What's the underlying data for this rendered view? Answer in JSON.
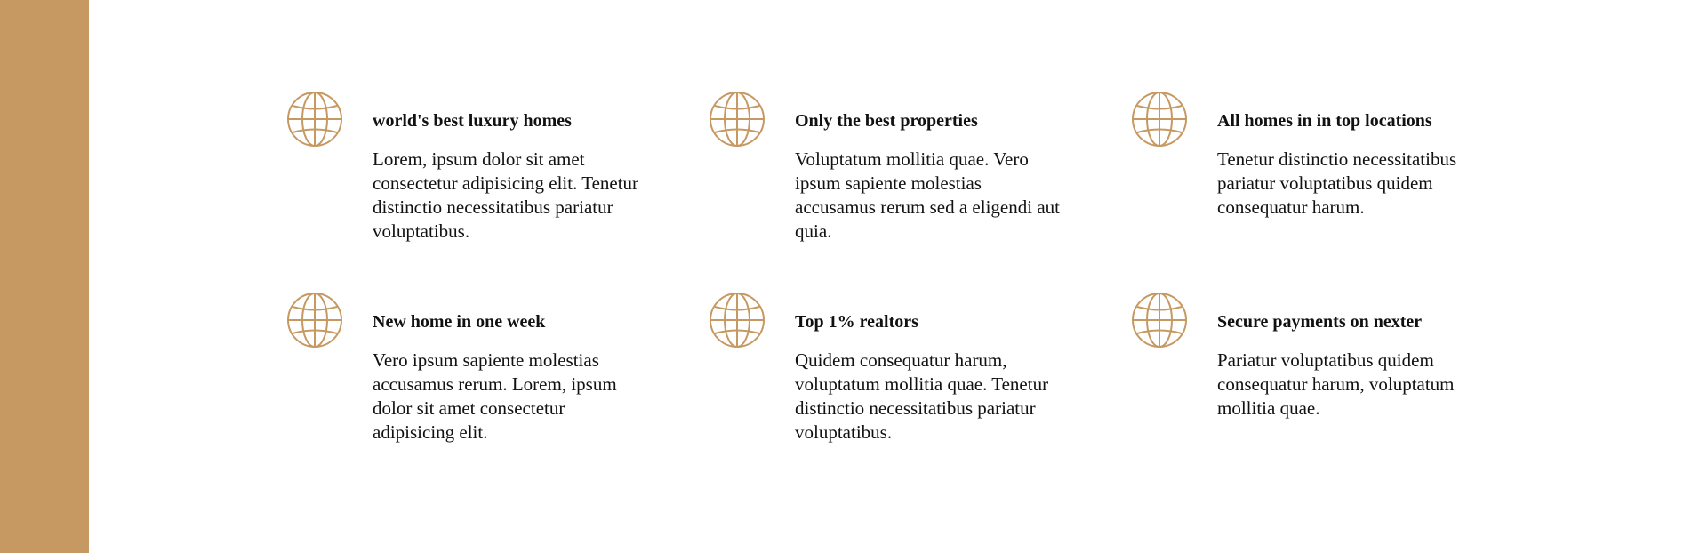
{
  "theme": {
    "accent": "#c69963",
    "text": "#111111",
    "background": "#ffffff"
  },
  "features": [
    {
      "icon": "globe-icon",
      "title": "world's best luxury homes",
      "text": "Lorem, ipsum dolor sit amet consectetur adipisicing elit. Tenetur distinctio necessitatibus pariatur voluptatibus."
    },
    {
      "icon": "globe-icon",
      "title": "Only the best properties",
      "text": "Voluptatum mollitia quae. Vero ipsum sapiente molestias accusamus rerum sed a eligendi aut quia."
    },
    {
      "icon": "globe-icon",
      "title": "All homes in in top locations",
      "text": "Tenetur distinctio necessitatibus pariatur voluptatibus quidem consequatur harum."
    },
    {
      "icon": "globe-icon",
      "title": "New home in one week",
      "text": "Vero ipsum sapiente molestias accusamus rerum. Lorem, ipsum dolor sit amet consectetur adipisicing elit."
    },
    {
      "icon": "globe-icon",
      "title": "Top 1% realtors",
      "text": "Quidem consequatur harum, voluptatum mollitia quae. Tenetur distinctio necessitatibus pariatur voluptatibus."
    },
    {
      "icon": "globe-icon",
      "title": "Secure payments on nexter",
      "text": "Pariatur voluptatibus quidem consequatur harum, voluptatum mollitia quae."
    }
  ]
}
